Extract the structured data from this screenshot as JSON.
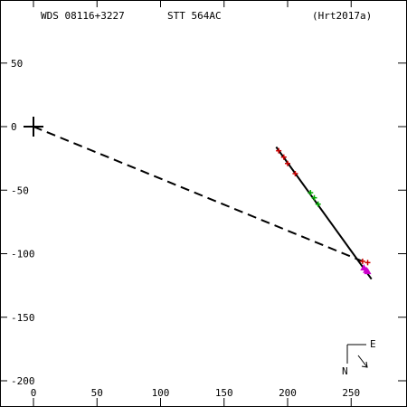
{
  "header": {
    "wds": "WDS 08116+3227",
    "discoverer": "STT 564AC",
    "reference": "(Hrt2017a)"
  },
  "compass": {
    "east": "E",
    "north": "N"
  },
  "colors": {
    "axis": "#000000",
    "orbit": "#000000",
    "obs_red": "#cc0000",
    "obs_green": "#00aa00",
    "obs_magenta": "#cc00cc"
  },
  "chart_data": {
    "type": "scatter",
    "title": "",
    "xlabel": "",
    "ylabel": "",
    "xlim": [
      -25,
      290
    ],
    "ylim": [
      -220,
      100
    ],
    "x_ticks": [
      0,
      50,
      100,
      150,
      200,
      250
    ],
    "y_ticks": [
      50,
      0,
      -50,
      -100,
      -150,
      -200
    ],
    "x_tick_labels": [
      "0",
      "50",
      "100",
      "150",
      "200",
      "250"
    ],
    "y_tick_labels": [
      "50",
      "0",
      "-50",
      "-100",
      "-150",
      "-200"
    ],
    "primary": {
      "x": 0,
      "y": 0
    },
    "orbit_line": [
      [
        191,
        -16
      ],
      [
        266,
        -120
      ]
    ],
    "separation_line": [
      [
        0,
        0
      ],
      [
        259,
        -106
      ]
    ],
    "series": [
      {
        "color": "red",
        "points": [
          [
            193,
            -19
          ],
          [
            197,
            -24
          ],
          [
            200,
            -29
          ],
          [
            206,
            -37
          ],
          [
            259,
            -106
          ],
          [
            263,
            -107
          ]
        ]
      },
      {
        "color": "green",
        "points": [
          [
            218,
            -52
          ],
          [
            221,
            -56
          ],
          [
            224,
            -61
          ]
        ]
      },
      {
        "color": "magenta",
        "points": [
          [
            260,
            -111
          ],
          [
            262,
            -113
          ],
          [
            263,
            -114
          ]
        ]
      }
    ],
    "grid": false
  }
}
